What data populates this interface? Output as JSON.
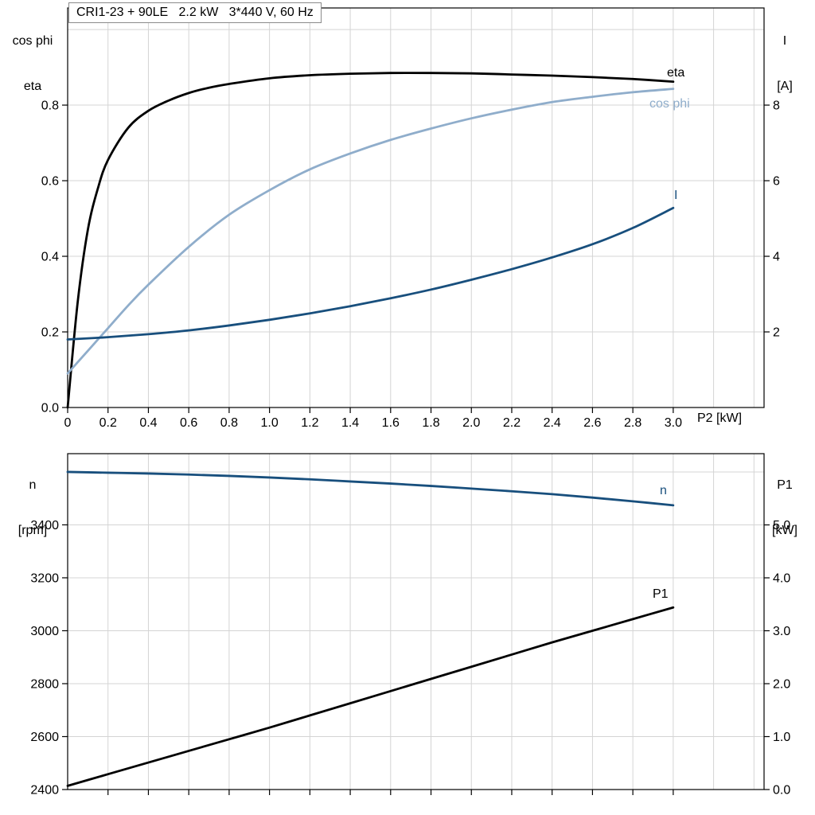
{
  "title_box": {
    "text": "CRI1-23 + 90LE   2.2 kW   3*440 V, 60 Hz"
  },
  "axis_corner_labels": {
    "top_left_line1": "cos phi",
    "top_left_line2": "eta",
    "top_right_line1": "I",
    "top_right_line2": "[A]",
    "x_label": "P2 [kW]",
    "bottom_left_line1": "n",
    "bottom_left_line2": "[rpm]",
    "bottom_right_line1": "P1",
    "bottom_right_line2": "[kW]"
  },
  "curve_labels": {
    "eta": "eta",
    "cos_phi": "cos phi",
    "current": "I",
    "speed": "n",
    "power": "P1"
  },
  "colors": {
    "black": "#000000",
    "dark_blue": "#184f7d",
    "light_blue": "#8fadcb",
    "grid": "#d4d4d4",
    "axis": "#000000"
  },
  "chart_data": [
    {
      "type": "line",
      "title": "CRI1-23 + 90LE   2.2 kW   3*440 V, 60 Hz",
      "xlabel": "P2 [kW]",
      "xlim": [
        0,
        3.45
      ],
      "x_ticks": [
        0,
        0.2,
        0.4,
        0.6,
        0.8,
        1.0,
        1.2,
        1.4,
        1.6,
        1.8,
        2.0,
        2.2,
        2.4,
        2.6,
        2.8,
        3.0
      ],
      "x_tick_labels": [
        "0",
        "0.2",
        "0.4",
        "0.6",
        "0.8",
        "1.0",
        "1.2",
        "1.4",
        "1.6",
        "1.8",
        "2.0",
        "2.2",
        "2.4",
        "2.6",
        "2.8",
        "3.0"
      ],
      "grid_x": [
        0.2,
        0.4,
        0.6,
        0.8,
        1.0,
        1.2,
        1.4,
        1.6,
        1.8,
        2.0,
        2.2,
        2.4,
        2.6,
        2.8,
        3.0,
        3.2,
        3.4
      ],
      "left_axis": {
        "label": "cos phi / eta",
        "lim": [
          0,
          1.057
        ],
        "ticks": [
          0,
          0.2,
          0.4,
          0.6,
          0.8
        ],
        "tick_labels": [
          "0.0",
          "0.2",
          "0.4",
          "0.6",
          "0.8"
        ],
        "grid": [
          0.2,
          0.4,
          0.6,
          0.8,
          1.0
        ]
      },
      "right_axis": {
        "label": "I [A]",
        "lim": [
          0,
          10.57
        ],
        "ticks": [
          2,
          4,
          6,
          8
        ],
        "tick_labels": [
          "2",
          "4",
          "6",
          "8"
        ]
      },
      "series": [
        {
          "name": "eta",
          "axis": "left",
          "color_key": "black",
          "x": [
            0,
            0.05,
            0.1,
            0.15,
            0.2,
            0.3,
            0.4,
            0.5,
            0.6,
            0.7,
            0.8,
            1.0,
            1.2,
            1.4,
            1.6,
            1.8,
            2.0,
            2.2,
            2.4,
            2.6,
            2.8,
            3.0
          ],
          "y": [
            0,
            0.28,
            0.47,
            0.58,
            0.655,
            0.74,
            0.785,
            0.812,
            0.832,
            0.846,
            0.856,
            0.871,
            0.879,
            0.883,
            0.885,
            0.885,
            0.884,
            0.881,
            0.878,
            0.874,
            0.869,
            0.862
          ]
        },
        {
          "name": "cos phi",
          "axis": "left",
          "color_key": "light_blue",
          "x": [
            0,
            0.1,
            0.2,
            0.3,
            0.4,
            0.6,
            0.8,
            1.0,
            1.2,
            1.4,
            1.6,
            1.8,
            2.0,
            2.2,
            2.4,
            2.6,
            2.8,
            3.0
          ],
          "y": [
            0.09,
            0.15,
            0.21,
            0.27,
            0.325,
            0.425,
            0.51,
            0.575,
            0.63,
            0.672,
            0.708,
            0.738,
            0.765,
            0.788,
            0.808,
            0.822,
            0.834,
            0.843
          ]
        },
        {
          "name": "I",
          "axis": "right",
          "color_key": "dark_blue",
          "x": [
            0,
            0.2,
            0.4,
            0.6,
            0.8,
            1.0,
            1.2,
            1.4,
            1.6,
            1.8,
            2.0,
            2.2,
            2.4,
            2.6,
            2.8,
            3.0
          ],
          "y": [
            1.8,
            1.86,
            1.94,
            2.04,
            2.17,
            2.32,
            2.49,
            2.68,
            2.89,
            3.12,
            3.38,
            3.66,
            3.97,
            4.32,
            4.75,
            5.28
          ]
        }
      ]
    },
    {
      "type": "line",
      "title": "",
      "xlabel": "",
      "xlim": [
        0,
        3.45
      ],
      "x_ticks": [
        0.2,
        0.4,
        0.6,
        0.8,
        1.0,
        1.2,
        1.4,
        1.6,
        1.8,
        2.0,
        2.2,
        2.4,
        2.6,
        2.8,
        3.0
      ],
      "x_tick_labels": [],
      "grid_x": [
        0.2,
        0.4,
        0.6,
        0.8,
        1.0,
        1.2,
        1.4,
        1.6,
        1.8,
        2.0,
        2.2,
        2.4,
        2.6,
        2.8,
        3.0,
        3.2,
        3.4
      ],
      "left_axis": {
        "label": "n [rpm]",
        "lim": [
          2400,
          3669
        ],
        "ticks": [
          2400,
          2600,
          2800,
          3000,
          3200,
          3400
        ],
        "tick_labels": [
          "2400",
          "2600",
          "2800",
          "3000",
          "3200",
          "3400"
        ],
        "grid": [
          2600,
          2800,
          3000,
          3200,
          3400,
          3600
        ]
      },
      "right_axis": {
        "label": "P1 [kW]",
        "lim": [
          0,
          6.346
        ],
        "ticks": [
          0,
          1,
          2,
          3,
          4,
          5
        ],
        "tick_labels": [
          "0.0",
          "1.0",
          "2.0",
          "3.0",
          "4.0",
          "5.0"
        ]
      },
      "series": [
        {
          "name": "n",
          "axis": "left",
          "color_key": "dark_blue",
          "x": [
            0,
            0.2,
            0.4,
            0.6,
            0.8,
            1.0,
            1.2,
            1.4,
            1.6,
            1.8,
            2.0,
            2.2,
            2.4,
            2.6,
            2.8,
            3.0
          ],
          "y": [
            3600,
            3597,
            3594,
            3590,
            3585,
            3579,
            3572,
            3564,
            3556,
            3547,
            3537,
            3527,
            3516,
            3503,
            3489,
            3474
          ]
        },
        {
          "name": "P1",
          "axis": "left_secondary_kw",
          "axis_used": "right",
          "color_key": "black",
          "x": [
            0,
            0.2,
            0.4,
            0.6,
            0.8,
            1.0,
            1.2,
            1.4,
            1.6,
            1.8,
            2.0,
            2.2,
            2.4,
            2.6,
            2.8,
            3.0
          ],
          "y": [
            0.07,
            0.29,
            0.51,
            0.73,
            0.95,
            1.17,
            1.4,
            1.63,
            1.86,
            2.09,
            2.32,
            2.55,
            2.78,
            3.0,
            3.22,
            3.44
          ]
        }
      ]
    }
  ]
}
